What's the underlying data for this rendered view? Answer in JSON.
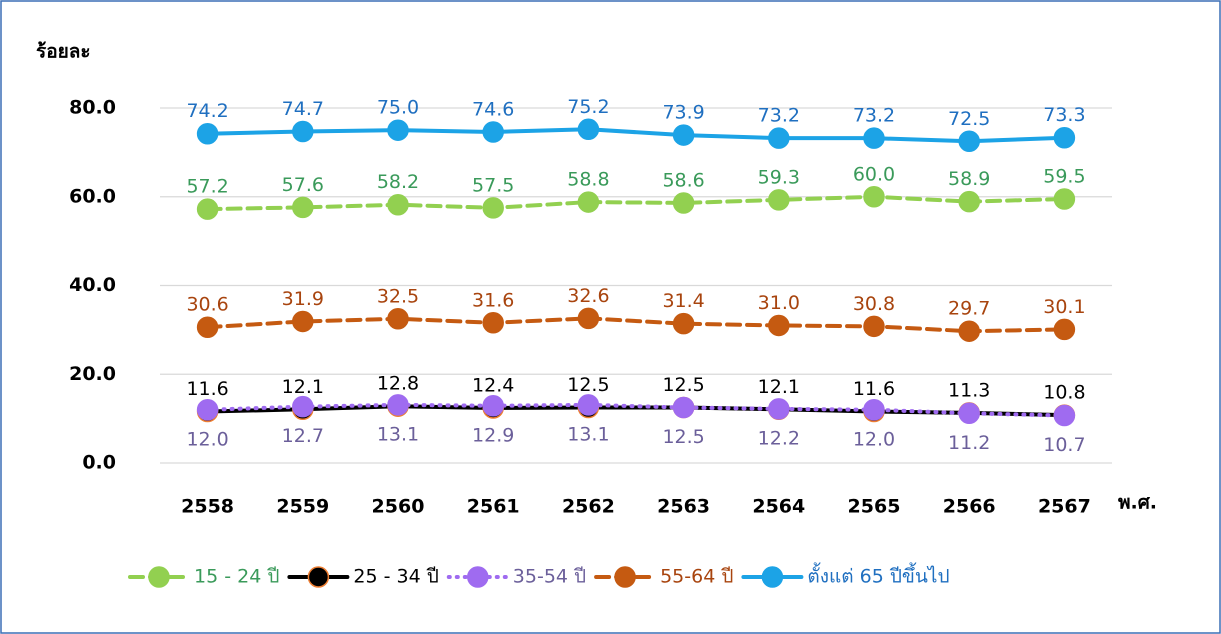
{
  "chart_data": {
    "type": "line",
    "y_label": "ร้อยละ",
    "x_label": "พ.ศ.",
    "categories": [
      "2558",
      "2559",
      "2560",
      "2561",
      "2562",
      "2563",
      "2564",
      "2565",
      "2566",
      "2567"
    ],
    "ylim": [
      0,
      80
    ],
    "yticks": [
      {
        "value": 0,
        "label": "0.0"
      },
      {
        "value": 20,
        "label": "20.0"
      },
      {
        "value": 40,
        "label": "40.0"
      },
      {
        "value": 60,
        "label": "60.0"
      },
      {
        "value": 80,
        "label": "80.0"
      }
    ],
    "grid": true,
    "legend": "bottom",
    "series": [
      {
        "name": "15 - 24 ปี",
        "color": "#92d050",
        "marker_edge": "#92d050",
        "label_color": "#3a9a5a",
        "line_style": "dashed",
        "label_position": "above",
        "values": [
          57.2,
          57.6,
          58.2,
          57.5,
          58.8,
          58.6,
          59.3,
          60.0,
          58.9,
          59.5
        ],
        "value_labels": [
          "57.2",
          "57.6",
          "58.2",
          "57.5",
          "58.8",
          "58.6",
          "59.3",
          "60.0",
          "58.9",
          "59.5"
        ]
      },
      {
        "name": "25 - 34 ปี",
        "color": "#000000",
        "marker_edge": "#ed7d31",
        "label_color": "#000000",
        "line_style": "solid",
        "label_position": "above",
        "values": [
          11.6,
          12.1,
          12.8,
          12.4,
          12.5,
          12.5,
          12.1,
          11.6,
          11.3,
          10.8
        ],
        "value_labels": [
          "11.6",
          "12.1",
          "12.8",
          "12.4",
          "12.5",
          "12.5",
          "12.1",
          "11.6",
          "11.3",
          "10.8"
        ]
      },
      {
        "name": "35-54 ปี",
        "color": "#9f6bf0",
        "marker_edge": "#9f6bf0",
        "label_color": "#6b5f9a",
        "line_style": "dotted",
        "label_position": "below",
        "values": [
          12.0,
          12.7,
          13.1,
          12.9,
          13.1,
          12.5,
          12.2,
          12.0,
          11.2,
          10.7
        ],
        "value_labels": [
          "12.0",
          "12.7",
          "13.1",
          "12.9",
          "13.1",
          "12.5",
          "12.2",
          "12.0",
          "11.2",
          "10.7"
        ]
      },
      {
        "name": "55-64 ปี",
        "color": "#c55a11",
        "marker_edge": "#c55a11",
        "label_color": "#a8440e",
        "line_style": "dashed",
        "label_position": "above",
        "values": [
          30.6,
          31.9,
          32.5,
          31.6,
          32.6,
          31.4,
          31.0,
          30.8,
          29.7,
          30.1
        ],
        "value_labels": [
          "30.6",
          "31.9",
          "32.5",
          "31.6",
          "32.6",
          "31.4",
          "31.0",
          "30.8",
          "29.7",
          "30.1"
        ]
      },
      {
        "name": "ตั้งแต่ 65 ปีขึ้นไป",
        "color": "#1ca3e6",
        "marker_edge": "#1ca3e6",
        "label_color": "#1f6fc0",
        "line_style": "solid",
        "label_position": "above",
        "values": [
          74.2,
          74.7,
          75.0,
          74.6,
          75.2,
          73.9,
          73.2,
          73.2,
          72.5,
          73.3
        ],
        "value_labels": [
          "74.2",
          "74.7",
          "75.0",
          "74.6",
          "75.2",
          "73.9",
          "73.2",
          "73.2",
          "72.5",
          "73.3"
        ]
      }
    ]
  }
}
